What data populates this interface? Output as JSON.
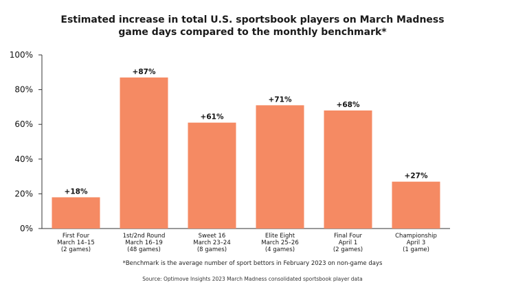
{
  "title": {
    "line1": "Estimated increase in total U.S. sportsbook players on March Madness",
    "line2": "game days compared to the monthly benchmark*"
  },
  "footnote": "*Benchmark is the average number of sport bettors in February 2023 on non-game days",
  "source": "Source: Optimove Insights 2023 March Madness consolidated sportsbook player data",
  "colors": {
    "bar": "#F58A63",
    "axis": "#333333"
  },
  "chart_data": {
    "type": "bar",
    "title": "Estimated increase in total U.S. sportsbook players on March Madness game days compared to the monthly benchmark*",
    "categories": [
      [
        "First Four",
        "March 14–15",
        "(2 games)"
      ],
      [
        "1st/2nd Round",
        "March 16–19",
        "(48 games)"
      ],
      [
        "Sweet 16",
        "March 23–24",
        "(8 games)"
      ],
      [
        "Elite Eight",
        "March 25–26",
        "(4 games)"
      ],
      [
        "Final Four",
        "April 1",
        "(2 games)"
      ],
      [
        "Championship",
        "April 3",
        "(1 game)"
      ]
    ],
    "values": [
      18,
      87,
      61,
      71,
      68,
      27
    ],
    "data_labels": [
      "+18%",
      "+87%",
      "+61%",
      "+71%",
      "+68%",
      "+27%"
    ],
    "ylim": [
      0,
      100
    ],
    "yticks": [
      0,
      20,
      40,
      60,
      80,
      100
    ],
    "ytick_labels": [
      "0%",
      "20%",
      "40%",
      "60%",
      "80%",
      "100%"
    ],
    "grid": false,
    "legend": "none"
  }
}
